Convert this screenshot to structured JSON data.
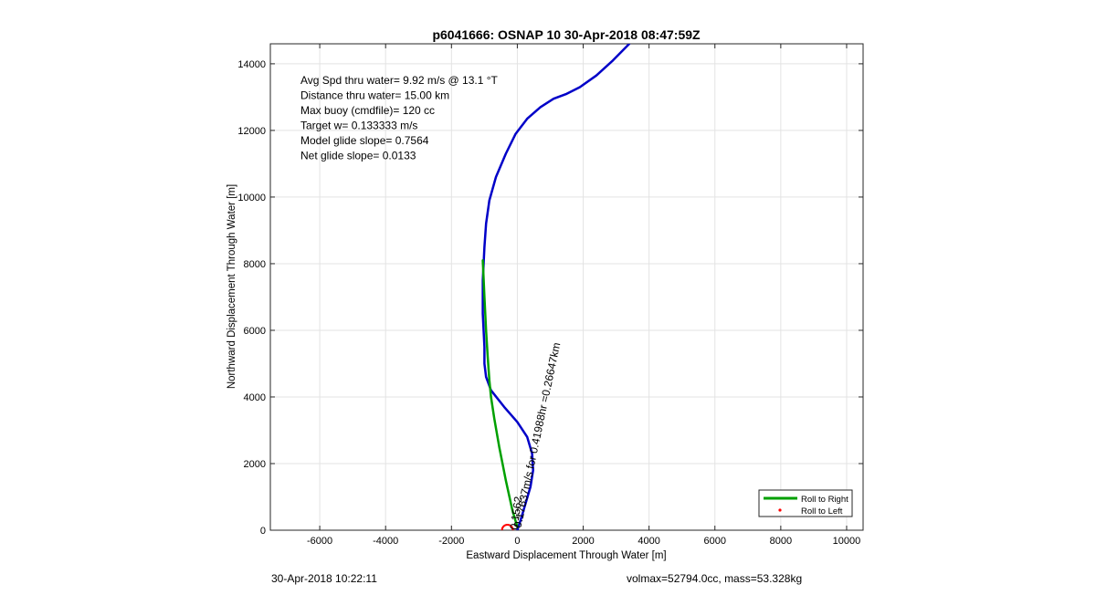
{
  "chart_data": {
    "type": "line",
    "title": "p6041666: OSNAP 10 30-Apr-2018 08:47:59Z",
    "xlabel": "Eastward Displacement Through Water [m]",
    "ylabel": "Northward Displacement Through Water [m]",
    "xlim": [
      -7500,
      10500
    ],
    "ylim": [
      0,
      14600
    ],
    "x_ticks": [
      -6000,
      -4000,
      -2000,
      0,
      2000,
      4000,
      6000,
      8000,
      10000
    ],
    "y_ticks": [
      0,
      2000,
      4000,
      6000,
      8000,
      10000,
      12000,
      14000
    ],
    "grid": true,
    "legend_position": "bottom-right",
    "legend": [
      {
        "label": "Roll to Right",
        "color": "#00a000",
        "marker": "line"
      },
      {
        "label": "Roll to Left",
        "color": "#ff0000",
        "marker": "dot"
      }
    ],
    "annotations": [
      "Avg Spd thru water=  9.92 m/s @  13.1 °T",
      "Distance thru water= 15.00 km",
      "Max buoy (cmdfile)= 120 cc",
      "Target w= 0.133333 m/s",
      "Model glide slope= 0.7564",
      "Net glide slope= 0.0133"
    ],
    "rotated_annotation": "0.17637m/s for 0.41988hr =0.26647km",
    "overlap_annotation": "0.1562",
    "start_marker": {
      "x": -300,
      "y": 0,
      "color": "#ff0000"
    },
    "series": [
      {
        "color": "#0000c8",
        "x": [
          0,
          100,
          250,
          400,
          480,
          450,
          300,
          0,
          -400,
          -800,
          -950,
          -1000,
          -1000,
          -1050,
          -1050,
          -1000,
          -950,
          -850,
          -650,
          -350,
          -50,
          300,
          700,
          1100,
          1500,
          1900,
          2400,
          2900,
          3400
        ],
        "y": [
          0,
          300,
          800,
          1300,
          1800,
          2300,
          2800,
          3250,
          3700,
          4200,
          4600,
          5000,
          5500,
          6500,
          7500,
          8500,
          9200,
          9900,
          10600,
          11300,
          11900,
          12350,
          12700,
          12950,
          13100,
          13300,
          13650,
          14100,
          14600
        ]
      },
      {
        "color": "#00a000",
        "x": [
          -1050,
          -1000,
          -950,
          -900,
          -850,
          -800,
          -700,
          -550,
          -350,
          -150,
          0
        ],
        "y": [
          8100,
          7000,
          6000,
          5200,
          4500,
          4000,
          3350,
          2500,
          1500,
          600,
          100
        ]
      }
    ]
  },
  "footer": {
    "timestamp": "30-Apr-2018 10:22:11",
    "volmax_mass": "volmax=52794.0cc, mass=53.328kg"
  }
}
